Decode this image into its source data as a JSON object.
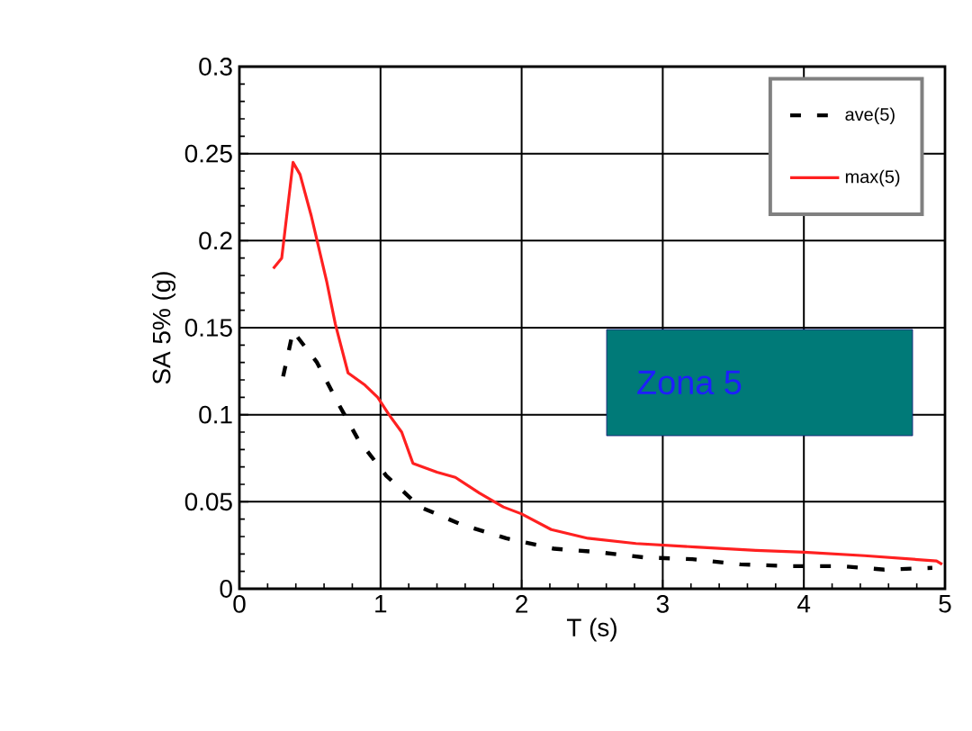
{
  "chart_data": {
    "type": "line",
    "xlabel": "T (s)",
    "ylabel": "SA 5% (g)",
    "xlim": [
      0,
      5
    ],
    "ylim": [
      0,
      0.3
    ],
    "xticks": [
      0,
      1,
      2,
      3,
      4,
      5
    ],
    "yticks": [
      0,
      0.05,
      0.1,
      0.15,
      0.2,
      0.25,
      0.3
    ],
    "grid": true,
    "legend": "top right",
    "annotations": [
      "Zona 5"
    ],
    "series": [
      {
        "name": "ave(5)",
        "color": "#000000",
        "line_style": "dashed",
        "x": [
          0.31,
          0.38,
          0.55,
          0.69,
          0.84,
          1.04,
          1.28,
          1.57,
          1.89,
          2.23,
          2.55,
          2.87,
          3.21,
          3.55,
          3.91,
          4.26,
          4.57,
          4.91
        ],
        "values": [
          0.122,
          0.148,
          0.13,
          0.108,
          0.086,
          0.065,
          0.047,
          0.037,
          0.029,
          0.023,
          0.021,
          0.018,
          0.017,
          0.014,
          0.013,
          0.013,
          0.011,
          0.012
        ]
      },
      {
        "name": "max(5)",
        "color": "#ff2020",
        "line_style": "solid",
        "x": [
          0.24,
          0.3,
          0.38,
          0.43,
          0.51,
          0.62,
          0.68,
          0.77,
          0.89,
          0.98,
          1.06,
          1.15,
          1.23,
          1.4,
          1.53,
          1.7,
          1.87,
          2.0,
          2.21,
          2.47,
          2.81,
          3.23,
          3.66,
          4.0,
          4.43,
          4.94,
          4.98
        ],
        "values": [
          0.184,
          0.19,
          0.245,
          0.238,
          0.214,
          0.176,
          0.152,
          0.124,
          0.117,
          0.11,
          0.1,
          0.09,
          0.072,
          0.067,
          0.064,
          0.055,
          0.047,
          0.043,
          0.034,
          0.029,
          0.026,
          0.024,
          0.022,
          0.021,
          0.019,
          0.016,
          0.014
        ]
      }
    ]
  }
}
